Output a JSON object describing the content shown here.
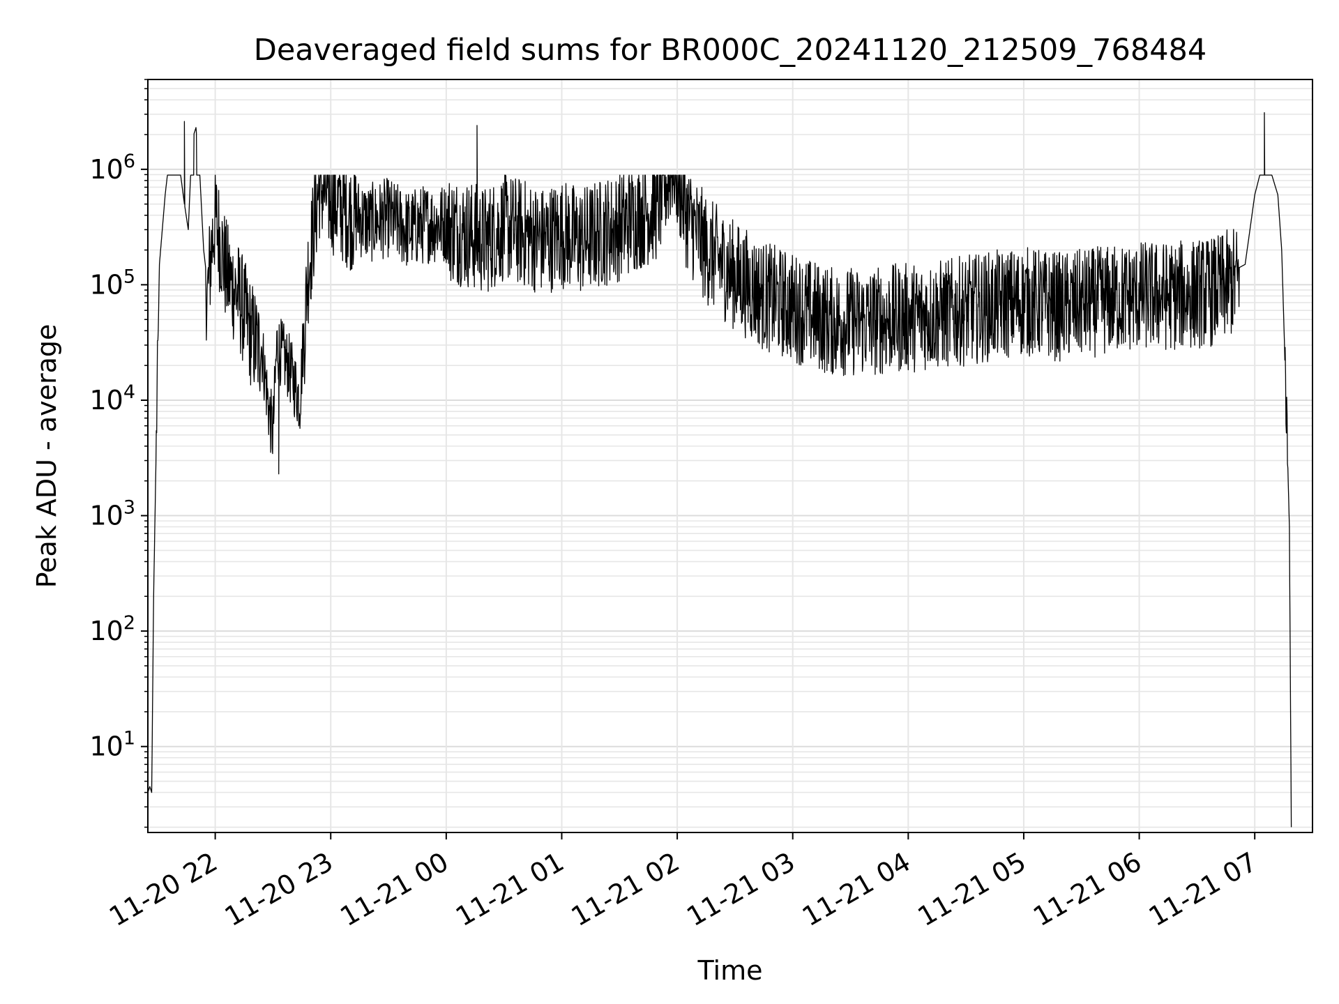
{
  "chart_data": {
    "type": "line",
    "title": "Deaveraged field sums for BR000C_20241120_212509_768484",
    "xlabel": "Time",
    "ylabel": "Peak ADU - average",
    "y_scale": "log",
    "ylim": [
      1.8,
      6000000
    ],
    "xlim": [
      "2024-11-20 21:25",
      "2024-11-21 07:30"
    ],
    "grid": true,
    "legend": "none",
    "line_color": "#000000",
    "x_ticks": [
      {
        "value": "2024-11-20 22:00",
        "label": "11-20 22"
      },
      {
        "value": "2024-11-20 23:00",
        "label": "11-20 23"
      },
      {
        "value": "2024-11-21 00:00",
        "label": "11-21 00"
      },
      {
        "value": "2024-11-21 01:00",
        "label": "11-21 01"
      },
      {
        "value": "2024-11-21 02:00",
        "label": "11-21 02"
      },
      {
        "value": "2024-11-21 03:00",
        "label": "11-21 03"
      },
      {
        "value": "2024-11-21 04:00",
        "label": "11-21 04"
      },
      {
        "value": "2024-11-21 05:00",
        "label": "11-21 05"
      },
      {
        "value": "2024-11-21 06:00",
        "label": "11-21 06"
      },
      {
        "value": "2024-11-21 07:00",
        "label": "11-21 07"
      }
    ],
    "y_ticks": [
      {
        "value": 10,
        "exp": "1"
      },
      {
        "value": 100,
        "exp": "2"
      },
      {
        "value": 1000,
        "exp": "3"
      },
      {
        "value": 10000,
        "exp": "4"
      },
      {
        "value": 100000,
        "exp": "5"
      },
      {
        "value": 1000000,
        "exp": "6"
      }
    ],
    "x": [
      "2024-11-20 21:25",
      "2024-11-20 21:26",
      "2024-11-20 21:27",
      "2024-11-20 21:28",
      "2024-11-20 21:31",
      "2024-11-20 21:34",
      "2024-11-20 21:36",
      "2024-11-20 21:38",
      "2024-11-20 21:40",
      "2024-11-20 21:42",
      "2024-11-20 21:44",
      "2024-11-20 21:46",
      "2024-11-20 21:48",
      "2024-11-20 21:50",
      "2024-11-20 21:52",
      "2024-11-20 21:54",
      "2024-11-20 21:56",
      "2024-11-20 21:58",
      "2024-11-20 22:00",
      "2024-11-20 22:06",
      "2024-11-20 22:12",
      "2024-11-20 22:18",
      "2024-11-20 22:24",
      "2024-11-20 22:28",
      "2024-11-20 22:30",
      "2024-11-20 22:32",
      "2024-11-20 22:38",
      "2024-11-20 22:44",
      "2024-11-20 22:48",
      "2024-11-20 22:54",
      "2024-11-20 23:00",
      "2024-11-20 23:10",
      "2024-11-20 23:20",
      "2024-11-20 23:30",
      "2024-11-20 23:40",
      "2024-11-20 23:50",
      "2024-11-21 00:00",
      "2024-11-21 00:10",
      "2024-11-21 00:20",
      "2024-11-21 00:30",
      "2024-11-21 00:40",
      "2024-11-21 00:50",
      "2024-11-21 01:00",
      "2024-11-21 01:10",
      "2024-11-21 01:20",
      "2024-11-21 01:30",
      "2024-11-21 01:40",
      "2024-11-21 01:50",
      "2024-11-21 01:58",
      "2024-11-21 02:05",
      "2024-11-21 02:15",
      "2024-11-21 02:30",
      "2024-11-21 02:45",
      "2024-11-21 03:00",
      "2024-11-21 03:20",
      "2024-11-21 03:40",
      "2024-11-21 04:00",
      "2024-11-21 04:20",
      "2024-11-21 04:40",
      "2024-11-21 05:00",
      "2024-11-21 05:20",
      "2024-11-21 05:40",
      "2024-11-21 06:00",
      "2024-11-21 06:20",
      "2024-11-21 06:40",
      "2024-11-21 06:55",
      "2024-11-21 07:00",
      "2024-11-21 07:04",
      "2024-11-21 07:08",
      "2024-11-21 07:12",
      "2024-11-21 07:14",
      "2024-11-21 07:16",
      "2024-11-21 07:18",
      "2024-11-21 07:19"
    ],
    "series": [
      {
        "values": [
          4,
          4.5,
          4,
          200,
          150000,
          600000,
          1200000,
          1500000,
          1300000,
          900000,
          500000,
          300000,
          1800000,
          2300000,
          900000,
          200000,
          100000,
          250000,
          500000,
          150000,
          100000,
          50000,
          30000,
          8000,
          5000,
          30000,
          20000,
          10000,
          150000,
          900000,
          700000,
          500000,
          400000,
          450000,
          350000,
          400000,
          400000,
          350000,
          300000,
          400000,
          350000,
          300000,
          350000,
          300000,
          350000,
          400000,
          500000,
          600000,
          1500000,
          500000,
          250000,
          150000,
          100000,
          80000,
          60000,
          60000,
          65000,
          70000,
          80000,
          90000,
          80000,
          90000,
          100000,
          100000,
          110000,
          150000,
          600000,
          1100000,
          1000000,
          600000,
          200000,
          15000,
          800,
          2
        ]
      }
    ],
    "notes_spikes": [
      {
        "x": "2024-11-20 21:44",
        "y": 2600000
      },
      {
        "x": "2024-11-21 00:16",
        "y": 2400000
      },
      {
        "x": "2024-11-21 07:05",
        "y": 3100000
      },
      {
        "x": "2024-11-20 22:33",
        "y": 2300
      }
    ]
  }
}
